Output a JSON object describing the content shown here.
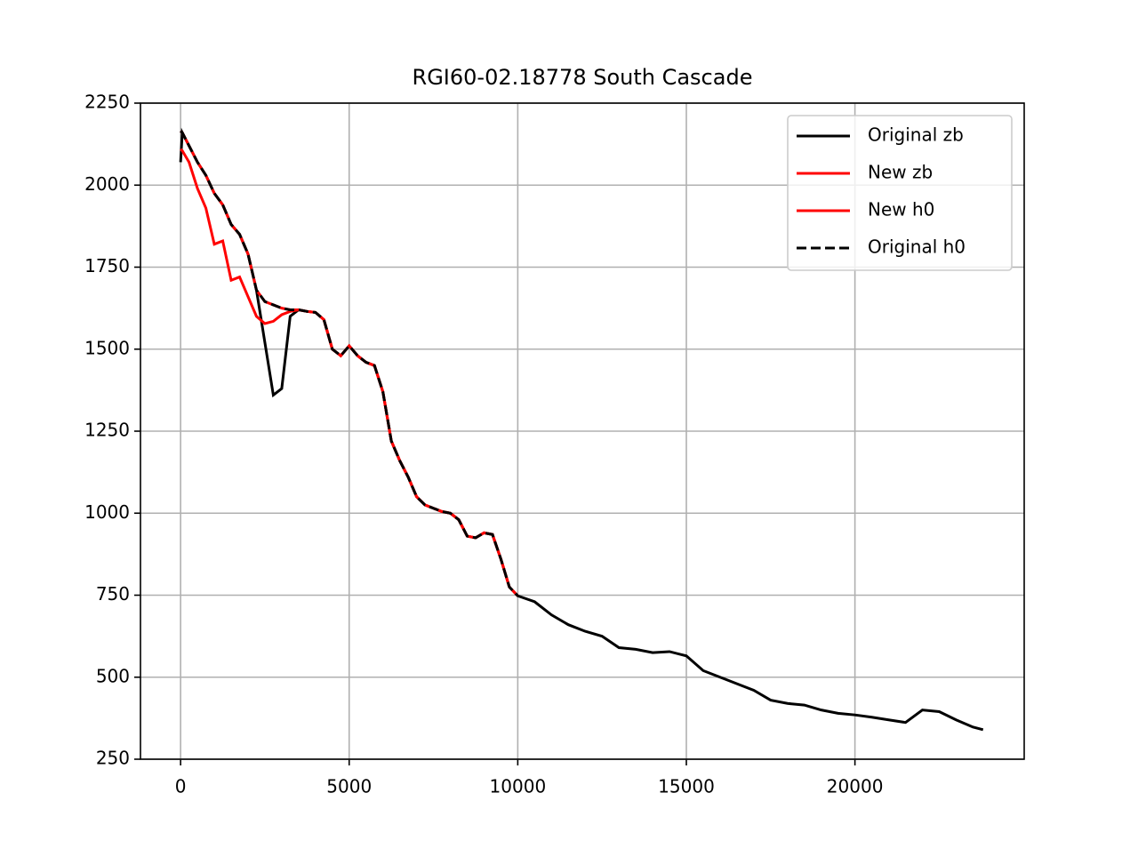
{
  "chart_data": {
    "type": "line",
    "title": "RGI60-02.18778 South Cascade",
    "x": [
      0,
      50,
      250,
      500,
      750,
      1000,
      1250,
      1500,
      1750,
      2000,
      2250,
      2500,
      2750,
      3000,
      3250,
      3500,
      3750,
      4000,
      4250,
      4500,
      4750,
      5000,
      5250,
      5500,
      5750,
      6000,
      6250,
      6500,
      6750,
      7000,
      7250,
      7500,
      7750,
      8000,
      8250,
      8500,
      8750,
      9000,
      9250,
      9500,
      9750,
      10000,
      10500,
      11000,
      11500,
      12000,
      12500,
      13000,
      13500,
      14000,
      14500,
      15000,
      15500,
      16000,
      16500,
      17000,
      17500,
      18000,
      18500,
      19000,
      19500,
      20000,
      20500,
      21000,
      21500,
      22000,
      22500,
      23000,
      23500,
      23800
    ],
    "series": [
      {
        "name": "Original zb",
        "color": "#000000",
        "linestyle": "solid",
        "values": [
          2070,
          2160,
          2120,
          2070,
          2030,
          1975,
          1940,
          1880,
          1850,
          1790,
          1680,
          1520,
          1360,
          1380,
          1600,
          1620,
          1615,
          1612,
          1590,
          1500,
          1480,
          1510,
          1480,
          1460,
          1450,
          1370,
          1220,
          1160,
          1110,
          1050,
          1025,
          1015,
          1005,
          1000,
          980,
          930,
          925,
          940,
          935,
          860,
          775,
          748,
          730,
          690,
          660,
          640,
          625,
          590,
          585,
          575,
          578,
          565,
          520,
          500,
          480,
          460,
          430,
          420,
          415,
          400,
          390,
          385,
          378,
          370,
          362,
          400,
          395,
          370,
          348,
          340
        ]
      },
      {
        "name": "New zb",
        "color": "#ff0000",
        "linestyle": "solid",
        "values": [
          2110,
          2105,
          2070,
          1990,
          1930,
          1820,
          1830,
          1710,
          1720,
          1660,
          1600,
          1578,
          1585,
          1605,
          1615,
          1620,
          1615,
          1612,
          1590,
          1500,
          1480,
          1510,
          1480,
          1460,
          1450,
          1370,
          1220,
          1160,
          1110,
          1050,
          1025,
          1015,
          1005,
          1000,
          980,
          930,
          925,
          940,
          935,
          860,
          775,
          748,
          null,
          null,
          null,
          null,
          null,
          null,
          null,
          null,
          null,
          null,
          null,
          null,
          null,
          null,
          null,
          null,
          null,
          null,
          null,
          null,
          null,
          null,
          null,
          null,
          null,
          null,
          null,
          null
        ]
      },
      {
        "name": "New h0",
        "color": "#ff0000",
        "linestyle": "solid",
        "values": [
          2165,
          2160,
          2120,
          2070,
          2030,
          1975,
          1940,
          1880,
          1850,
          1790,
          1680,
          1645,
          1635,
          1625,
          1620,
          1620,
          1615,
          1612,
          1590,
          1500,
          1480,
          1510,
          1480,
          1460,
          1450,
          1370,
          1220,
          1160,
          1110,
          1050,
          1025,
          1015,
          1005,
          1000,
          980,
          930,
          925,
          940,
          935,
          860,
          775,
          748,
          null,
          null,
          null,
          null,
          null,
          null,
          null,
          null,
          null,
          null,
          null,
          null,
          null,
          null,
          null,
          null,
          null,
          null,
          null,
          null,
          null,
          null,
          null,
          null,
          null,
          null,
          null,
          null
        ]
      },
      {
        "name": "Original h0",
        "color": "#000000",
        "linestyle": "dashed",
        "values": [
          2165,
          2160,
          2120,
          2070,
          2030,
          1975,
          1940,
          1880,
          1850,
          1790,
          1680,
          1645,
          1635,
          1625,
          1620,
          1620,
          1615,
          1612,
          1590,
          1500,
          1480,
          1510,
          1480,
          1460,
          1450,
          1370,
          1220,
          1160,
          1110,
          1050,
          1025,
          1015,
          1005,
          1000,
          980,
          930,
          925,
          940,
          935,
          860,
          775,
          748,
          null,
          null,
          null,
          null,
          null,
          null,
          null,
          null,
          null,
          null,
          null,
          null,
          null,
          null,
          null,
          null,
          null,
          null,
          null,
          null,
          null,
          null,
          null,
          null,
          null,
          null,
          null,
          null
        ]
      }
    ],
    "xlim": [
      -1190,
      25020
    ],
    "ylim": [
      250,
      2250
    ],
    "xticks": [
      0,
      5000,
      10000,
      15000,
      20000
    ],
    "yticks": [
      250,
      500,
      750,
      1000,
      1250,
      1500,
      1750,
      2000,
      2250
    ],
    "grid": true,
    "legend": "upper right"
  }
}
